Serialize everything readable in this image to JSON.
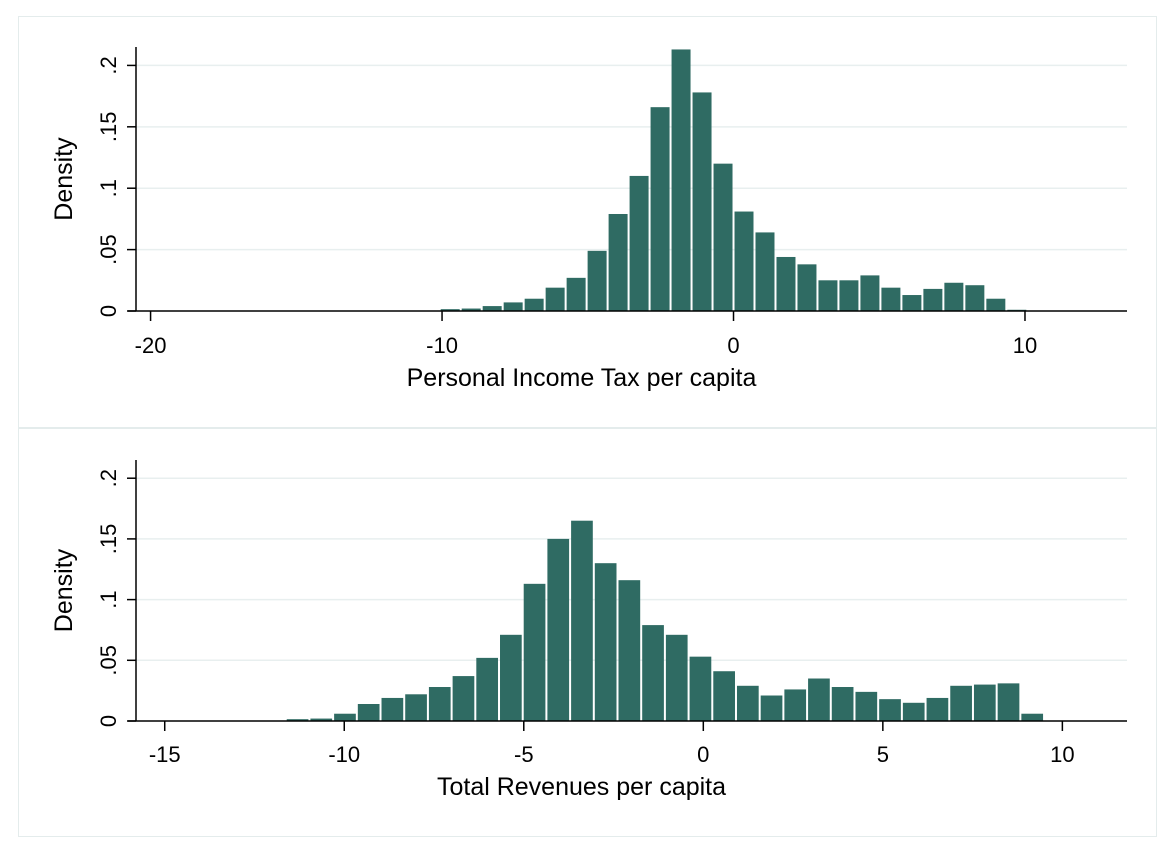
{
  "colors": {
    "bar": "#2f6b63",
    "grid": "#e8efef",
    "axis": "#000000",
    "frame": "#e4ecec"
  },
  "chart_data": [
    {
      "type": "bar",
      "xlabel": "Personal Income Tax per capita",
      "ylabel": "Density",
      "xlim": [
        -20.5,
        13.5
      ],
      "ylim": [
        0,
        0.215
      ],
      "xticks": [
        -20,
        -10,
        0,
        10
      ],
      "xtick_labels": [
        "-20",
        "-10",
        "0",
        "10"
      ],
      "yticks": [
        0,
        0.05,
        0.1,
        0.15,
        0.2
      ],
      "ytick_labels": [
        "0",
        ".05",
        ".1",
        ".15",
        ".2"
      ],
      "grid": true,
      "bin_width": 0.72,
      "bins": [
        {
          "x": -9.72,
          "y": 0.0015
        },
        {
          "x": -9.0,
          "y": 0.002
        },
        {
          "x": -8.28,
          "y": 0.004
        },
        {
          "x": -7.56,
          "y": 0.007
        },
        {
          "x": -6.84,
          "y": 0.01
        },
        {
          "x": -6.12,
          "y": 0.019
        },
        {
          "x": -5.4,
          "y": 0.027
        },
        {
          "x": -4.68,
          "y": 0.049
        },
        {
          "x": -3.96,
          "y": 0.079
        },
        {
          "x": -3.24,
          "y": 0.11
        },
        {
          "x": -2.52,
          "y": 0.166
        },
        {
          "x": -1.8,
          "y": 0.213
        },
        {
          "x": -1.08,
          "y": 0.178
        },
        {
          "x": -0.36,
          "y": 0.12
        },
        {
          "x": 0.36,
          "y": 0.081
        },
        {
          "x": 1.08,
          "y": 0.064
        },
        {
          "x": 1.8,
          "y": 0.044
        },
        {
          "x": 2.52,
          "y": 0.038
        },
        {
          "x": 3.24,
          "y": 0.025
        },
        {
          "x": 3.96,
          "y": 0.025
        },
        {
          "x": 4.68,
          "y": 0.029
        },
        {
          "x": 5.4,
          "y": 0.019
        },
        {
          "x": 6.12,
          "y": 0.013
        },
        {
          "x": 6.84,
          "y": 0.018
        },
        {
          "x": 7.56,
          "y": 0.023
        },
        {
          "x": 8.28,
          "y": 0.021
        },
        {
          "x": 9.0,
          "y": 0.01
        },
        {
          "x": 9.72,
          "y": 0.001
        }
      ]
    },
    {
      "type": "bar",
      "xlabel": "Total Revenues per capita",
      "ylabel": "Density",
      "xlim": [
        -15.8,
        11.8
      ],
      "ylim": [
        0,
        0.215
      ],
      "xticks": [
        -15,
        -10,
        -5,
        0,
        5,
        10
      ],
      "xtick_labels": [
        "-15",
        "-10",
        "-5",
        "0",
        "5",
        "10"
      ],
      "yticks": [
        0,
        0.05,
        0.1,
        0.15,
        0.2
      ],
      "ytick_labels": [
        "0",
        ".05",
        ".1",
        ".15",
        ".2"
      ],
      "grid": true,
      "bin_width": 0.66,
      "bins": [
        {
          "x": -11.3,
          "y": 0.0015
        },
        {
          "x": -10.64,
          "y": 0.002
        },
        {
          "x": -9.98,
          "y": 0.006
        },
        {
          "x": -9.32,
          "y": 0.014
        },
        {
          "x": -8.66,
          "y": 0.019
        },
        {
          "x": -8.0,
          "y": 0.022
        },
        {
          "x": -7.34,
          "y": 0.028
        },
        {
          "x": -6.68,
          "y": 0.037
        },
        {
          "x": -6.02,
          "y": 0.052
        },
        {
          "x": -5.36,
          "y": 0.071
        },
        {
          "x": -4.7,
          "y": 0.113
        },
        {
          "x": -4.04,
          "y": 0.15
        },
        {
          "x": -3.38,
          "y": 0.165
        },
        {
          "x": -2.72,
          "y": 0.13
        },
        {
          "x": -2.06,
          "y": 0.116
        },
        {
          "x": -1.4,
          "y": 0.079
        },
        {
          "x": -0.74,
          "y": 0.071
        },
        {
          "x": -0.08,
          "y": 0.053
        },
        {
          "x": 0.58,
          "y": 0.041
        },
        {
          "x": 1.24,
          "y": 0.029
        },
        {
          "x": 1.9,
          "y": 0.021
        },
        {
          "x": 2.56,
          "y": 0.026
        },
        {
          "x": 3.22,
          "y": 0.035
        },
        {
          "x": 3.88,
          "y": 0.028
        },
        {
          "x": 4.54,
          "y": 0.024
        },
        {
          "x": 5.2,
          "y": 0.018
        },
        {
          "x": 5.86,
          "y": 0.015
        },
        {
          "x": 6.52,
          "y": 0.019
        },
        {
          "x": 7.18,
          "y": 0.029
        },
        {
          "x": 7.84,
          "y": 0.03
        },
        {
          "x": 8.5,
          "y": 0.031
        },
        {
          "x": 9.16,
          "y": 0.006
        }
      ]
    }
  ]
}
